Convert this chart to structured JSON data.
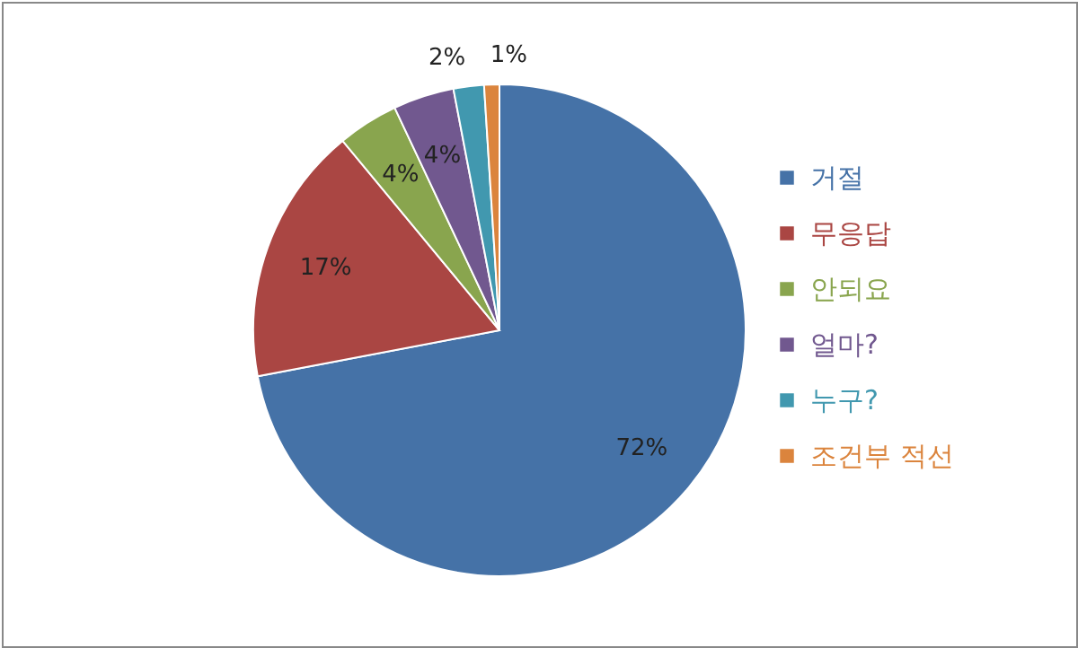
{
  "chart_data": {
    "type": "pie",
    "categories": [
      "거절",
      "무응답",
      "안되요",
      "얼마?",
      "누구?",
      "조건부 적선"
    ],
    "values": [
      72,
      17,
      4,
      4,
      2,
      1
    ],
    "colors": [
      "#4572a7",
      "#aa4643",
      "#89a54e",
      "#71588f",
      "#4198af",
      "#db843d"
    ],
    "value_labels": [
      "72%",
      "17%",
      "4%",
      "4%",
      "2%",
      "1%"
    ],
    "legend": "right"
  }
}
